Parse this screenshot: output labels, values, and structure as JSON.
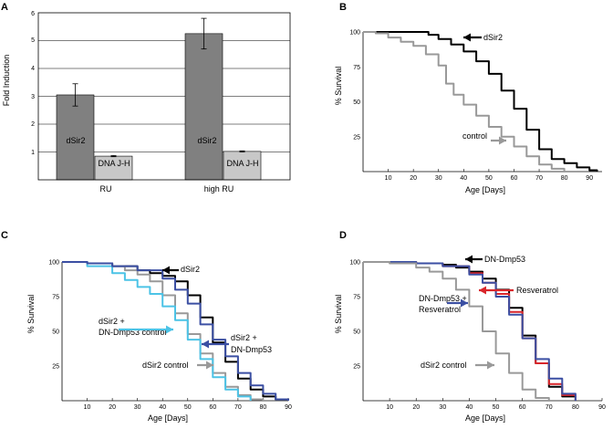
{
  "figure": {
    "panels": [
      "A",
      "B",
      "C",
      "D"
    ]
  },
  "chart_data": [
    {
      "panel": "A",
      "type": "bar",
      "ylabel": "Fold Induction",
      "ylim": [
        0,
        6
      ],
      "yticks": [
        1,
        2,
        3,
        4,
        5,
        6
      ],
      "categories": [
        "RU",
        "high RU"
      ],
      "series": [
        {
          "name": "dSir2",
          "values": [
            3.05,
            5.25
          ],
          "errors": [
            0.4,
            0.55
          ],
          "color": "#808080"
        },
        {
          "name": "DNA J-H",
          "values": [
            0.85,
            1.02
          ],
          "errors": [
            0.02,
            0.02
          ],
          "color": "#c8c8c8"
        }
      ],
      "grid": true
    },
    {
      "panel": "B",
      "type": "line",
      "xlabel": "Age [Days]",
      "ylabel": "% Survival",
      "xlim": [
        0,
        95
      ],
      "ylim": [
        0,
        100
      ],
      "xticks": [
        10,
        20,
        30,
        40,
        50,
        60,
        70,
        80,
        90
      ],
      "yticks": [
        25,
        50,
        75,
        100
      ],
      "series": [
        {
          "name": "dSir2",
          "color": "#000000",
          "x": [
            0,
            10,
            20,
            26,
            30,
            35,
            40,
            45,
            50,
            55,
            60,
            65,
            70,
            75,
            80,
            85,
            90,
            93
          ],
          "y": [
            100,
            100,
            100,
            98,
            95,
            91,
            86,
            79,
            70,
            58,
            45,
            30,
            16,
            9,
            6,
            3,
            1,
            0
          ]
        },
        {
          "name": "control",
          "color": "#999999",
          "x": [
            0,
            5,
            10,
            15,
            20,
            25,
            30,
            33,
            36,
            40,
            45,
            50,
            55,
            60,
            65,
            70,
            75,
            80
          ],
          "y": [
            100,
            99,
            96,
            93,
            90,
            84,
            76,
            63,
            55,
            48,
            40,
            32,
            25,
            18,
            11,
            5,
            2,
            0
          ]
        }
      ],
      "annotations": [
        {
          "text": "dSir2",
          "x": 52,
          "y": 87,
          "arrow_color": "#000000",
          "arrow_dir": "left"
        },
        {
          "text": "control",
          "x": 47,
          "y": 20,
          "arrow_color": "#999999",
          "arrow_dir": "right"
        }
      ]
    },
    {
      "panel": "C",
      "type": "line",
      "xlabel": "Age [Days]",
      "ylabel": "% Survival",
      "xlim": [
        0,
        90
      ],
      "ylim": [
        0,
        100
      ],
      "xticks": [
        10,
        20,
        30,
        40,
        50,
        60,
        70,
        80,
        90
      ],
      "yticks": [
        25,
        50,
        75,
        100
      ],
      "series": [
        {
          "name": "dSir2",
          "color": "#000000",
          "x": [
            0,
            10,
            20,
            30,
            35,
            40,
            45,
            50,
            55,
            60,
            65,
            70,
            75,
            80,
            85,
            90
          ],
          "y": [
            100,
            99,
            97,
            94,
            92,
            90,
            86,
            76,
            60,
            42,
            28,
            16,
            8,
            3,
            1,
            0
          ]
        },
        {
          "name": "dSir2 control",
          "color": "#999999",
          "x": [
            0,
            10,
            20,
            25,
            30,
            35,
            40,
            45,
            50,
            55,
            60,
            65,
            70,
            75,
            80
          ],
          "y": [
            100,
            99,
            97,
            94,
            91,
            86,
            76,
            63,
            48,
            34,
            20,
            10,
            4,
            1,
            0
          ]
        },
        {
          "name": "dSir2 + DN-Dmp53 control",
          "color": "#4cc3e6",
          "x": [
            0,
            10,
            20,
            25,
            30,
            35,
            40,
            45,
            50,
            55,
            60,
            65,
            70,
            75
          ],
          "y": [
            100,
            97,
            92,
            87,
            82,
            77,
            68,
            58,
            44,
            30,
            17,
            8,
            3,
            0
          ]
        },
        {
          "name": "dSir2 + DN-Dmp53",
          "color": "#3b4fa3",
          "x": [
            0,
            10,
            20,
            30,
            40,
            45,
            50,
            55,
            60,
            65,
            70,
            75,
            80,
            85,
            90
          ],
          "y": [
            100,
            99,
            97,
            94,
            88,
            80,
            70,
            55,
            44,
            32,
            20,
            11,
            5,
            1,
            0
          ]
        }
      ],
      "annotations": [
        {
          "text": "dSir2",
          "arrow_color": "#000000",
          "arrow_dir": "left"
        },
        {
          "text": "dSir2 +",
          "text2": "DN-Dmp53 control",
          "arrow_color": "#4cc3e6",
          "arrow_dir": "right"
        },
        {
          "text": "dSir2 +",
          "text2": "DN-Dmp53",
          "arrow_color": "#3b4fa3",
          "arrow_dir": "left"
        },
        {
          "text": "dSir2 control",
          "arrow_color": "#999999",
          "arrow_dir": "right"
        }
      ]
    },
    {
      "panel": "D",
      "type": "line",
      "xlabel": "Age [Days]",
      "ylabel": "% Survival",
      "xlim": [
        0,
        90
      ],
      "ylim": [
        0,
        100
      ],
      "xticks": [
        10,
        20,
        30,
        40,
        50,
        60,
        70,
        80,
        90
      ],
      "yticks": [
        25,
        50,
        75,
        100
      ],
      "series": [
        {
          "name": "DN-Dmp53",
          "color": "#000000",
          "x": [
            0,
            10,
            20,
            30,
            35,
            40,
            45,
            50,
            55,
            60,
            65,
            70,
            75,
            80
          ],
          "y": [
            100,
            100,
            99,
            98,
            96,
            93,
            88,
            80,
            67,
            47,
            27,
            10,
            3,
            0
          ]
        },
        {
          "name": "Resveratrol",
          "color": "#d9262b",
          "x": [
            0,
            10,
            20,
            30,
            40,
            45,
            50,
            55,
            60,
            65,
            70,
            75,
            80
          ],
          "y": [
            100,
            100,
            99,
            97,
            92,
            85,
            77,
            64,
            45,
            27,
            12,
            4,
            0
          ]
        },
        {
          "name": "DN-Dmp53 + Resveratrol",
          "color": "#3b4fa3",
          "x": [
            0,
            10,
            20,
            30,
            40,
            45,
            50,
            55,
            60,
            65,
            70,
            75,
            80
          ],
          "y": [
            100,
            100,
            99,
            97,
            91,
            85,
            75,
            62,
            45,
            30,
            16,
            5,
            0
          ]
        },
        {
          "name": "dSir2 control",
          "color": "#999999",
          "x": [
            0,
            10,
            20,
            25,
            30,
            35,
            40,
            45,
            50,
            55,
            60,
            65,
            70
          ],
          "y": [
            100,
            99,
            96,
            93,
            88,
            80,
            68,
            50,
            34,
            20,
            8,
            2,
            0
          ]
        }
      ],
      "annotations": [
        {
          "text": "DN-Dmp53",
          "arrow_color": "#000000",
          "arrow_dir": "left"
        },
        {
          "text": "Resveratrol",
          "arrow_color": "#d9262b",
          "arrow_dir": "left"
        },
        {
          "text": "DN-Dmp53 +",
          "text2": "Resveratrol",
          "arrow_color": "#3b4fa3",
          "arrow_dir": "right"
        },
        {
          "text": "dSir2 control",
          "arrow_color": "#999999",
          "arrow_dir": "right"
        }
      ]
    }
  ]
}
